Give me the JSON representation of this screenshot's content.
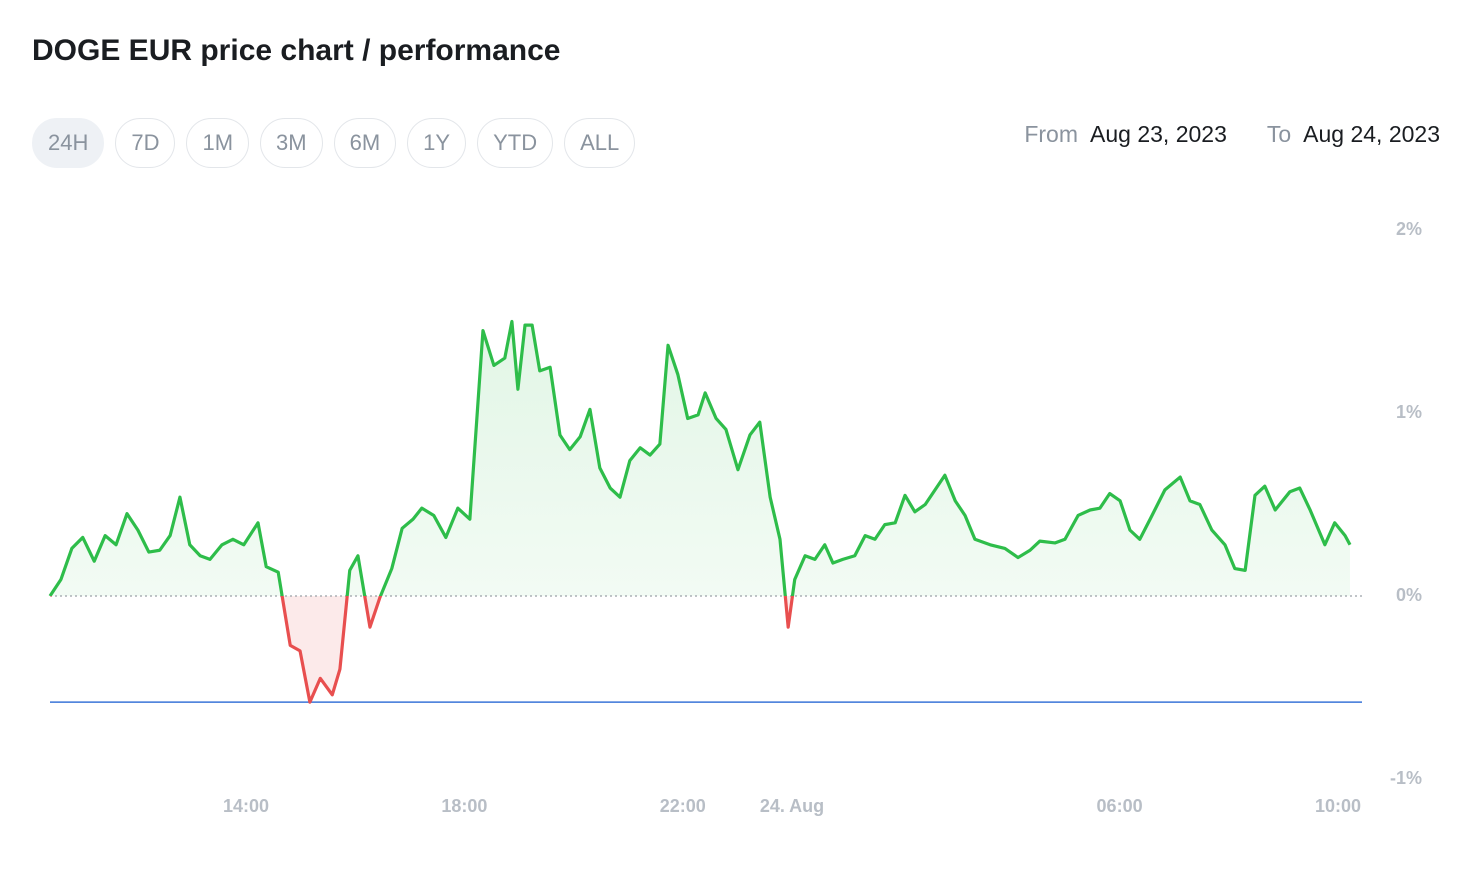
{
  "header": {
    "title": "DOGE EUR price chart / performance"
  },
  "range_buttons": [
    "24H",
    "7D",
    "1M",
    "3M",
    "6M",
    "1Y",
    "YTD",
    "ALL"
  ],
  "selected_index": 0,
  "date_range": {
    "from_label": "From",
    "from": "Aug 23, 2023",
    "to_label": "To",
    "to": "Aug 24, 2023"
  },
  "chart_data": {
    "type": "line",
    "color": "#2ebd4a",
    "negative_color": "#e84f4f",
    "xlim": [
      10.41,
      34.44
    ],
    "xticks": [
      {
        "value": 14,
        "label": "14:00"
      },
      {
        "value": 18,
        "label": "18:00"
      },
      {
        "value": 22,
        "label": "22:00"
      },
      {
        "value": 24,
        "label": "24. Aug"
      },
      {
        "value": 30,
        "label": "06:00"
      },
      {
        "value": 34,
        "label": "10:00"
      }
    ],
    "ylim": [
      -1,
      2
    ],
    "yticks": [
      {
        "value": 2,
        "label": "2%"
      },
      {
        "value": 1,
        "label": "1%"
      },
      {
        "value": 0,
        "label": "0%"
      },
      {
        "value": -1,
        "label": "-1%"
      }
    ],
    "reference_line": {
      "value": -0.58,
      "color": "#3a74d8"
    },
    "x": [
      10.41,
      10.61,
      10.81,
      11.01,
      11.22,
      11.42,
      11.62,
      11.82,
      12.02,
      12.22,
      12.42,
      12.61,
      12.79,
      12.97,
      13.16,
      13.34,
      13.56,
      13.76,
      13.96,
      14.22,
      14.37,
      14.59,
      14.81,
      14.99,
      15.17,
      15.36,
      15.58,
      15.72,
      15.9,
      16.05,
      16.27,
      16.45,
      16.67,
      16.86,
      17.06,
      17.22,
      17.44,
      17.66,
      17.88,
      18.1,
      18.34,
      18.54,
      18.74,
      18.87,
      18.98,
      19.11,
      19.24,
      19.38,
      19.57,
      19.75,
      19.93,
      20.12,
      20.3,
      20.48,
      20.67,
      20.85,
      21.03,
      21.22,
      21.4,
      21.58,
      21.73,
      21.91,
      22.09,
      22.28,
      22.41,
      22.61,
      22.79,
      23.01,
      23.23,
      23.41,
      23.6,
      23.78,
      23.93,
      24.05,
      24.24,
      24.42,
      24.6,
      24.75,
      24.93,
      25.15,
      25.34,
      25.52,
      25.7,
      25.89,
      26.07,
      26.25,
      26.44,
      26.62,
      26.8,
      26.99,
      27.17,
      27.35,
      27.63,
      27.9,
      28.14,
      28.36,
      28.54,
      28.82,
      29.0,
      29.24,
      29.46,
      29.64,
      29.82,
      30.01,
      30.19,
      30.37,
      30.56,
      30.83,
      31.11,
      31.29,
      31.47,
      31.69,
      31.93,
      32.11,
      32.3,
      32.48,
      32.66,
      32.85,
      33.12,
      33.3,
      33.49,
      33.76,
      33.94,
      34.13,
      34.22
    ],
    "values": [
      0,
      0.09,
      0.26,
      0.32,
      0.19,
      0.33,
      0.28,
      0.45,
      0.36,
      0.24,
      0.25,
      0.33,
      0.54,
      0.28,
      0.22,
      0.2,
      0.28,
      0.31,
      0.28,
      0.4,
      0.16,
      0.13,
      -0.27,
      -0.3,
      -0.58,
      -0.45,
      -0.54,
      -0.4,
      0.14,
      0.22,
      -0.17,
      -0.01,
      0.15,
      0.37,
      0.42,
      0.48,
      0.44,
      0.32,
      0.48,
      0.42,
      1.45,
      1.26,
      1.3,
      1.5,
      1.13,
      1.48,
      1.48,
      1.23,
      1.25,
      0.88,
      0.8,
      0.87,
      1.02,
      0.7,
      0.59,
      0.54,
      0.74,
      0.81,
      0.77,
      0.83,
      1.37,
      1.21,
      0.97,
      0.99,
      1.11,
      0.97,
      0.91,
      0.69,
      0.88,
      0.95,
      0.54,
      0.31,
      -0.17,
      0.09,
      0.22,
      0.2,
      0.28,
      0.18,
      0.2,
      0.22,
      0.33,
      0.31,
      0.39,
      0.4,
      0.55,
      0.46,
      0.5,
      0.58,
      0.66,
      0.52,
      0.44,
      0.31,
      0.28,
      0.26,
      0.21,
      0.25,
      0.3,
      0.29,
      0.31,
      0.44,
      0.47,
      0.48,
      0.56,
      0.52,
      0.36,
      0.31,
      0.42,
      0.58,
      0.65,
      0.52,
      0.5,
      0.36,
      0.28,
      0.15,
      0.14,
      0.55,
      0.6,
      0.47,
      0.57,
      0.59,
      0.47,
      0.28,
      0.4,
      0.33,
      0.28
    ]
  }
}
